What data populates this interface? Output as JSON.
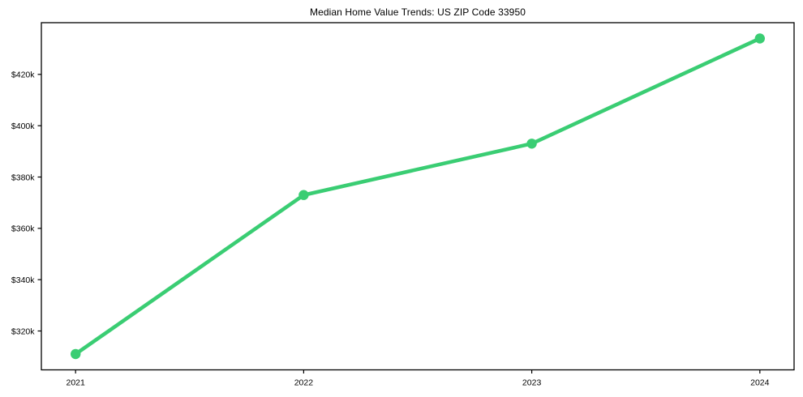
{
  "figure": {
    "title": "Median Home Value Trends: US ZIP Code 33950"
  },
  "chart_data": {
    "type": "line",
    "title": "Median Home Value Trends: US ZIP Code 33950",
    "x": [
      2021,
      2022,
      2023,
      2024
    ],
    "x_tick_labels": [
      "2021",
      "2022",
      "2023",
      "2024"
    ],
    "series": [
      {
        "name": "Median Home Value",
        "values": [
          311000,
          373000,
          393000,
          434000
        ]
      }
    ],
    "y_ticks": [
      {
        "value": 320000,
        "label": "$320k"
      },
      {
        "value": 340000,
        "label": "$340k"
      },
      {
        "value": 360000,
        "label": "$360k"
      },
      {
        "value": 380000,
        "label": "$380k"
      },
      {
        "value": 400000,
        "label": "$400k"
      },
      {
        "value": 420000,
        "label": "$420k"
      }
    ],
    "xlim": [
      2020.85,
      2024.15
    ],
    "ylim": [
      304850,
      440150
    ],
    "grid": false,
    "legend": "none",
    "line_color": "#3acd73",
    "marker_color": "#3acd73",
    "axis_color": "#000000",
    "tick_label_color": "#000000",
    "background_color": "#ffffff"
  }
}
